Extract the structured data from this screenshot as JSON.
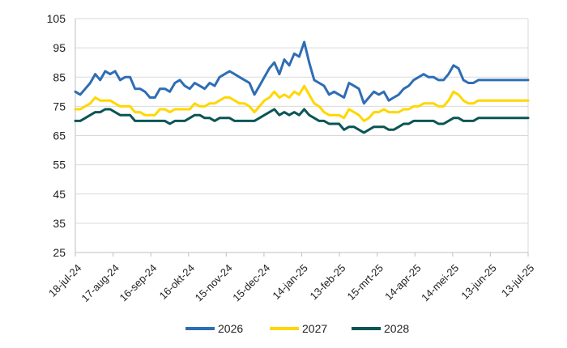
{
  "chart_data": {
    "type": "line",
    "title": "",
    "xlabel": "",
    "ylabel": "",
    "ylim": [
      25,
      105
    ],
    "yticks": [
      25,
      35,
      45,
      55,
      65,
      75,
      85,
      95,
      105
    ],
    "grid": "horizontal",
    "legend_position": "bottom",
    "x_ticks": [
      "18-jul-24",
      "17-aug-24",
      "16-sep-24",
      "16-okt-24",
      "15-nov-24",
      "15-dec-24",
      "14-jan-25",
      "13-feb-25",
      "15-mrt-25",
      "14-apr-25",
      "14-mei-25",
      "13-jun-25",
      "13-jul-25"
    ],
    "x": [
      "18-jul-24",
      "22-jul-24",
      "26-jul-24",
      "30-jul-24",
      "3-aug-24",
      "7-aug-24",
      "11-aug-24",
      "15-aug-24",
      "19-aug-24",
      "23-aug-24",
      "27-aug-24",
      "31-aug-24",
      "4-sep-24",
      "8-sep-24",
      "12-sep-24",
      "16-sep-24",
      "20-sep-24",
      "24-sep-24",
      "28-sep-24",
      "2-okt-24",
      "6-okt-24",
      "10-okt-24",
      "14-okt-24",
      "18-okt-24",
      "22-okt-24",
      "26-okt-24",
      "30-okt-24",
      "3-nov-24",
      "7-nov-24",
      "11-nov-24",
      "15-nov-24",
      "19-nov-24",
      "23-nov-24",
      "27-nov-24",
      "1-dec-24",
      "5-dec-24",
      "9-dec-24",
      "13-dec-24",
      "17-dec-24",
      "21-dec-24",
      "25-dec-24",
      "29-dec-24",
      "2-jan-25",
      "6-jan-25",
      "10-jan-25",
      "14-jan-25",
      "18-jan-25",
      "22-jan-25",
      "26-jan-25",
      "30-jan-25",
      "3-feb-25",
      "7-feb-25",
      "11-feb-25",
      "15-feb-25",
      "19-feb-25",
      "23-feb-25",
      "27-feb-25",
      "3-mrt-25",
      "7-mrt-25",
      "11-mrt-25",
      "15-mrt-25",
      "19-mrt-25",
      "23-mrt-25",
      "27-mrt-25",
      "31-mrt-25",
      "4-apr-25",
      "8-apr-25",
      "12-apr-25",
      "16-apr-25",
      "20-apr-25",
      "24-apr-25",
      "28-apr-25",
      "2-mei-25",
      "6-mei-25",
      "10-mei-25",
      "14-mei-25",
      "18-mei-25",
      "22-mei-25",
      "26-mei-25",
      "30-mei-25",
      "3-jun-25",
      "7-jun-25",
      "11-jun-25",
      "15-jun-25",
      "19-jun-25",
      "23-jun-25",
      "27-jun-25",
      "1-jul-25",
      "5-jul-25",
      "9-jul-25",
      "13-jul-25",
      "17-jul-25"
    ],
    "series": [
      {
        "name": "2026",
        "color": "#2E6DB4",
        "values": [
          80,
          79,
          81,
          83,
          86,
          84,
          87,
          86,
          87,
          84,
          85,
          85,
          81,
          81,
          80,
          78,
          78,
          81,
          81,
          80,
          83,
          84,
          82,
          81,
          83,
          82,
          81,
          83,
          82,
          85,
          86,
          87,
          86,
          85,
          84,
          83,
          79,
          82,
          85,
          88,
          90,
          86,
          91,
          89,
          93,
          92,
          97,
          90,
          84,
          83,
          82,
          79,
          80,
          79,
          78,
          83,
          82,
          81,
          76,
          78,
          80,
          79,
          80,
          77,
          78,
          79,
          81,
          82,
          84,
          85,
          86,
          85,
          85,
          84,
          84,
          86,
          89,
          88,
          84,
          83,
          83,
          84,
          84,
          84,
          84,
          84,
          84,
          84,
          84,
          84,
          84,
          84
        ]
      },
      {
        "name": "2027",
        "color": "#FFD700",
        "values": [
          74,
          74,
          75,
          76,
          78,
          77,
          77,
          77,
          76,
          75,
          75,
          75,
          73,
          73,
          72,
          72,
          72,
          74,
          74,
          73,
          74,
          74,
          74,
          74,
          76,
          75,
          75,
          76,
          76,
          77,
          78,
          78,
          77,
          76,
          76,
          75,
          73,
          75,
          77,
          78,
          80,
          78,
          79,
          78,
          80,
          79,
          82,
          79,
          76,
          75,
          73,
          72,
          72,
          72,
          71,
          74,
          73,
          72,
          70,
          71,
          73,
          73,
          74,
          73,
          73,
          73,
          74,
          74,
          75,
          75,
          76,
          76,
          76,
          75,
          75,
          77,
          80,
          79,
          77,
          76,
          76,
          77,
          77,
          77,
          77,
          77,
          77,
          77,
          77,
          77,
          77,
          77
        ]
      },
      {
        "name": "2028",
        "color": "#0B5555",
        "values": [
          70,
          70,
          71,
          72,
          73,
          73,
          74,
          74,
          73,
          72,
          72,
          72,
          70,
          70,
          70,
          70,
          70,
          70,
          70,
          69,
          70,
          70,
          70,
          71,
          72,
          72,
          71,
          71,
          70,
          71,
          71,
          71,
          70,
          70,
          70,
          70,
          70,
          71,
          72,
          73,
          74,
          72,
          73,
          72,
          73,
          72,
          74,
          72,
          71,
          70,
          70,
          69,
          69,
          69,
          67,
          68,
          68,
          67,
          66,
          67,
          68,
          68,
          68,
          67,
          67,
          68,
          69,
          69,
          70,
          70,
          70,
          70,
          70,
          69,
          69,
          70,
          71,
          71,
          70,
          70,
          70,
          71,
          71,
          71,
          71,
          71,
          71,
          71,
          71,
          71,
          71,
          71
        ]
      }
    ]
  }
}
